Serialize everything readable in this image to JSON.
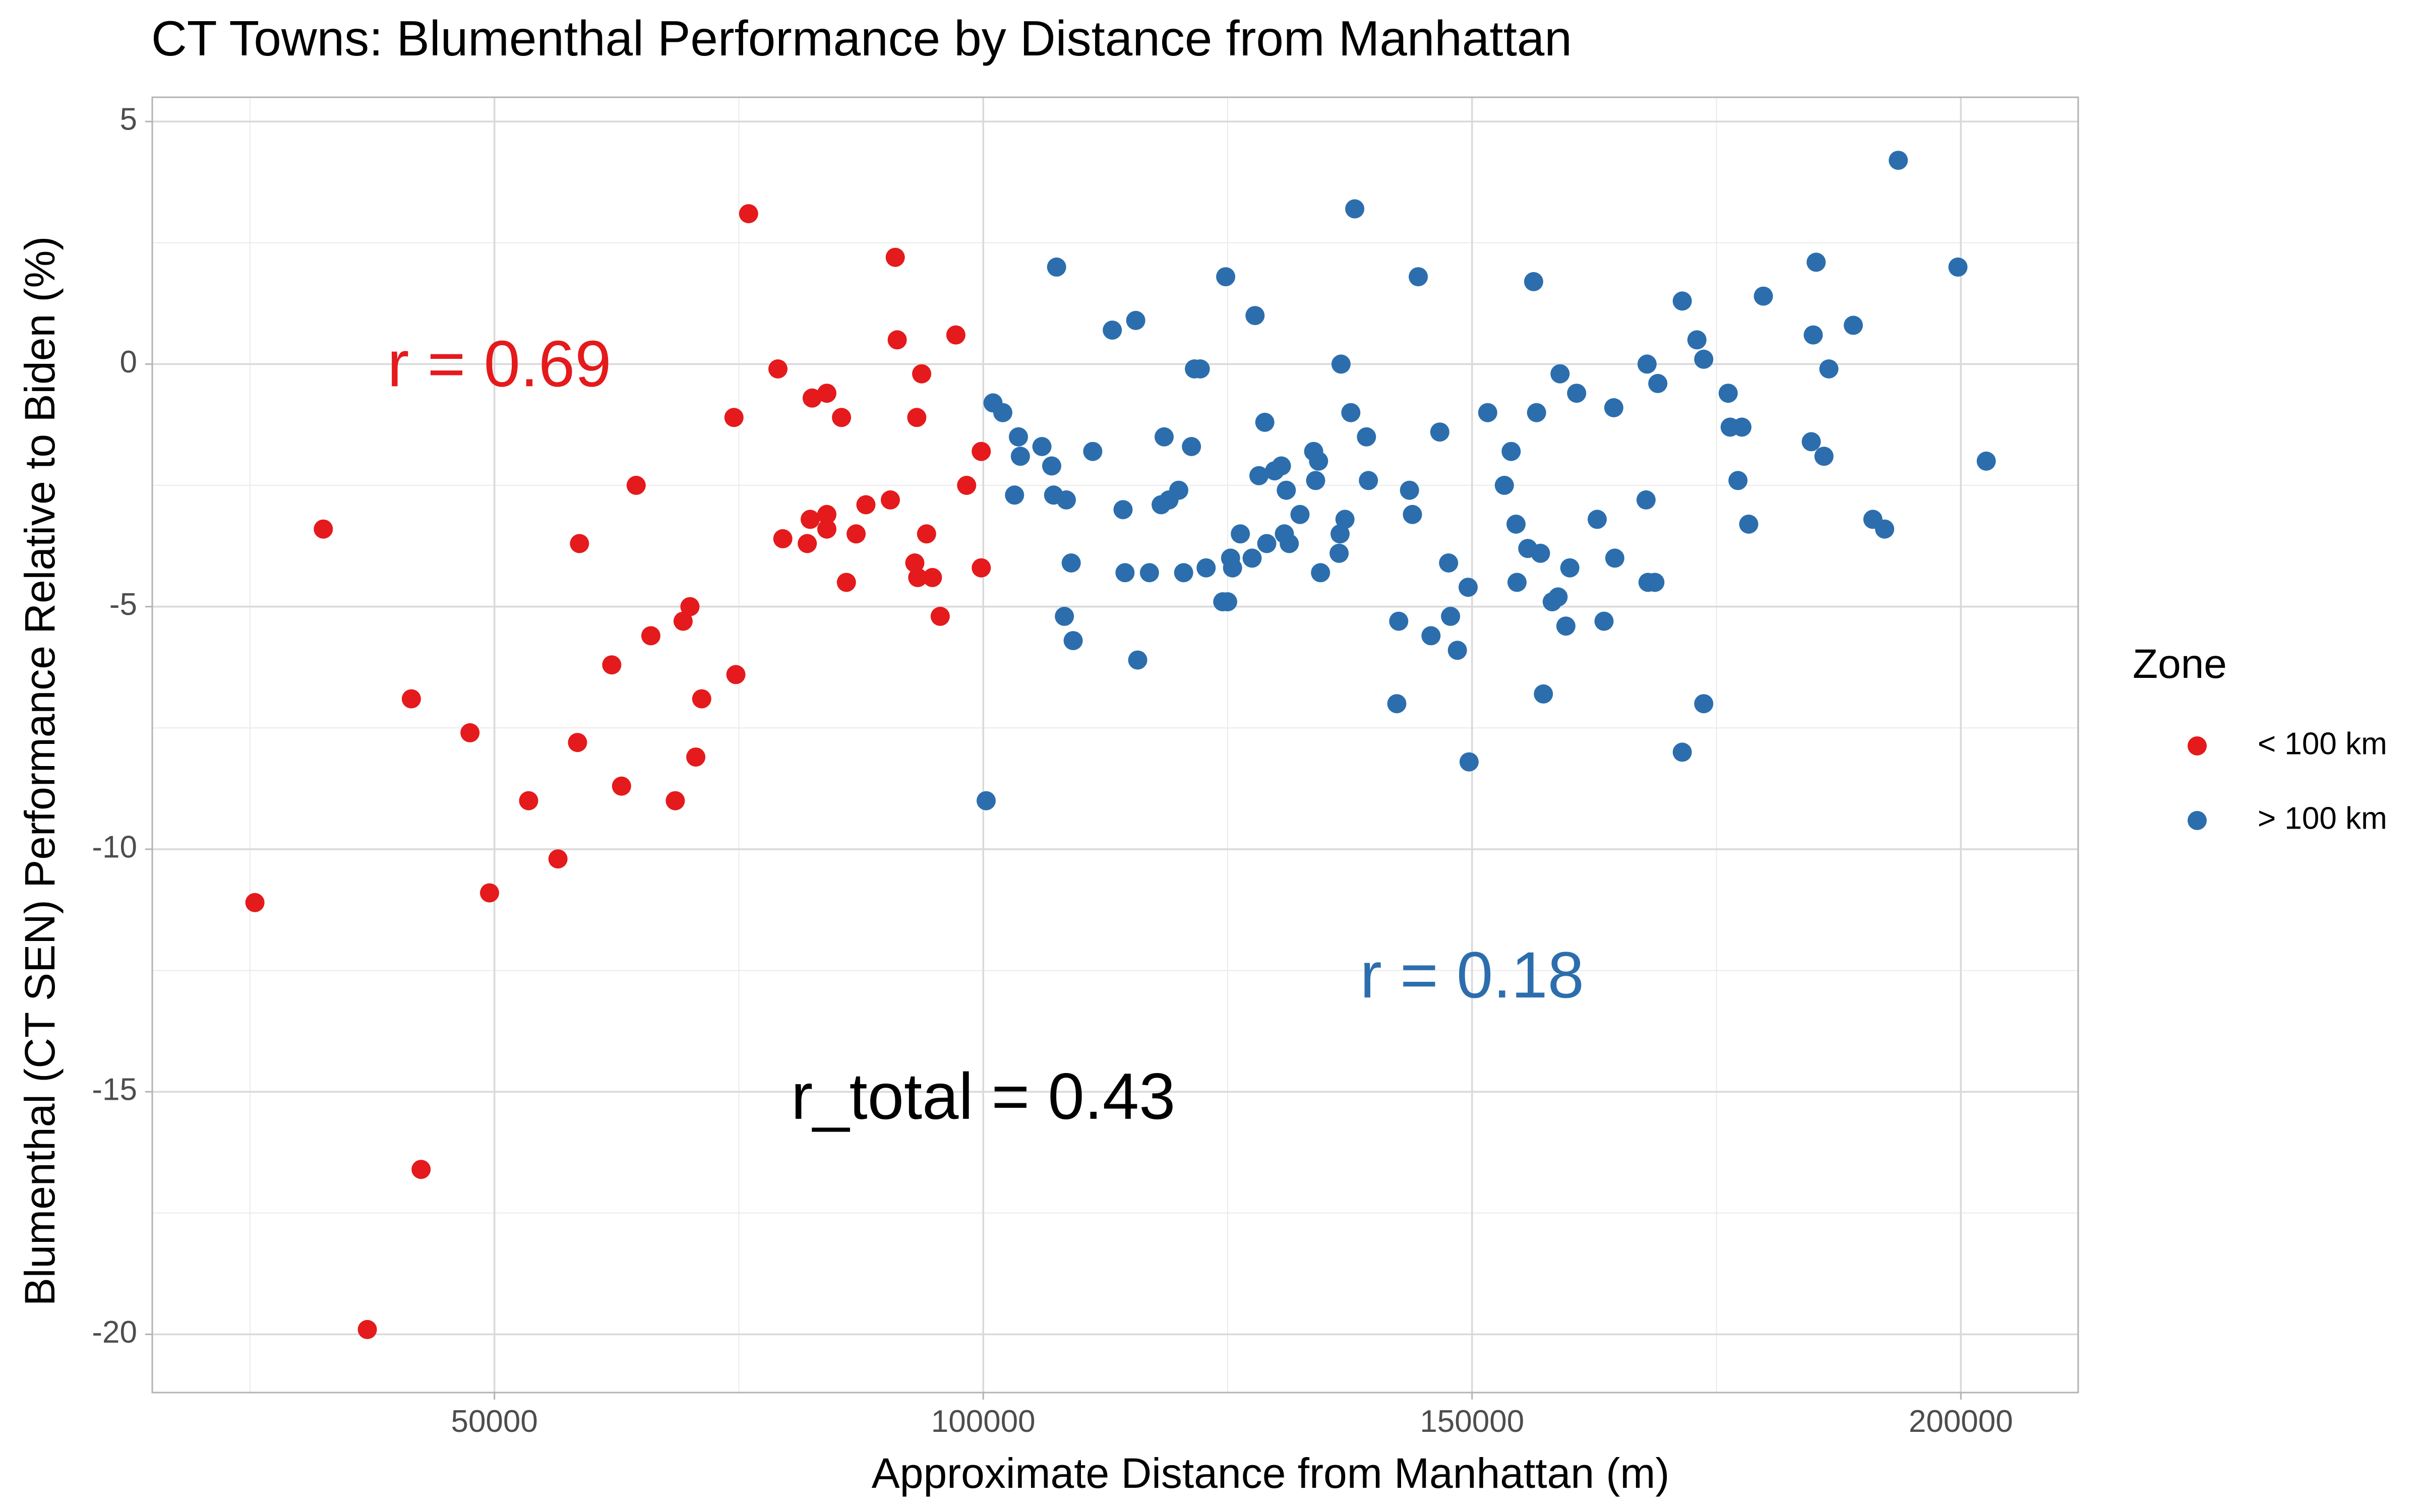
{
  "chart_data": {
    "type": "scatter",
    "title": "CT Towns: Blumenthal Performance by Distance from Manhattan",
    "xlabel": "Approximate Distance from Manhattan (m)",
    "ylabel": "Blumenthal (CT SEN) Performance Relative to Biden (%)",
    "xlim": [
      15000,
      212000
    ],
    "ylim": [
      -21.2,
      5.5
    ],
    "x_ticks": [
      50000,
      100000,
      150000,
      200000
    ],
    "x_tick_labels": [
      "50000",
      "100000",
      "150000",
      "200000"
    ],
    "y_ticks": [
      5,
      0,
      -5,
      -10,
      -15,
      -20
    ],
    "y_tick_labels": [
      "5",
      "0",
      "-5",
      "-10",
      "-15",
      "-20"
    ],
    "grid": true,
    "legend": {
      "title": "Zone",
      "position": "right"
    },
    "annotations": [
      {
        "text": "r = 0.69",
        "x": 50500,
        "y": -0.1,
        "color": "#e41a1c"
      },
      {
        "text": "r = 0.18",
        "x": 150000,
        "y": -12.7,
        "color": "#2c6ead"
      },
      {
        "text": "r_total = 0.43",
        "x": 100000,
        "y": -15.2,
        "color": "#000000"
      }
    ],
    "series": [
      {
        "name": "< 100 km",
        "color": "#e41a1c",
        "points": [
          [
            25500,
            -11.1
          ],
          [
            32500,
            -3.4
          ],
          [
            37000,
            -19.9
          ],
          [
            41500,
            -6.9
          ],
          [
            42500,
            -16.6
          ],
          [
            47500,
            -7.6
          ],
          [
            49500,
            -10.9
          ],
          [
            53500,
            -9.0
          ],
          [
            56500,
            -10.2
          ],
          [
            58500,
            -7.8
          ],
          [
            58700,
            -3.7
          ],
          [
            62000,
            -6.2
          ],
          [
            63000,
            -8.7
          ],
          [
            64500,
            -2.5
          ],
          [
            66000,
            -5.6
          ],
          [
            68500,
            -9.0
          ],
          [
            69300,
            -5.3
          ],
          [
            70000,
            -5.0
          ],
          [
            70600,
            -8.1
          ],
          [
            71200,
            -6.9
          ],
          [
            74500,
            -1.1
          ],
          [
            74700,
            -6.4
          ],
          [
            76000,
            3.1
          ],
          [
            79000,
            -0.1
          ],
          [
            79500,
            -3.6
          ],
          [
            82000,
            -3.7
          ],
          [
            82300,
            -3.2
          ],
          [
            82500,
            -0.7
          ],
          [
            84000,
            -0.6
          ],
          [
            84000,
            -3.1
          ],
          [
            84000,
            -3.4
          ],
          [
            85500,
            -1.1
          ],
          [
            86000,
            -4.5
          ],
          [
            87000,
            -3.5
          ],
          [
            88000,
            -2.9
          ],
          [
            90500,
            -2.8
          ],
          [
            91000,
            2.2
          ],
          [
            91200,
            0.5
          ],
          [
            93000,
            -4.1
          ],
          [
            93200,
            -1.1
          ],
          [
            93300,
            -4.4
          ],
          [
            93700,
            -0.2
          ],
          [
            94200,
            -3.5
          ],
          [
            94800,
            -4.4
          ],
          [
            95600,
            -5.2
          ],
          [
            97200,
            0.6
          ],
          [
            98300,
            -2.5
          ],
          [
            99800,
            -1.8
          ],
          [
            99800,
            -4.2
          ]
        ]
      },
      {
        "name": "> 100 km",
        "color": "#2c6ead",
        "points": [
          [
            100300,
            -9.0
          ],
          [
            101000,
            -0.8
          ],
          [
            102000,
            -1.0
          ],
          [
            103200,
            -2.7
          ],
          [
            103600,
            -1.5
          ],
          [
            103800,
            -1.9
          ],
          [
            106000,
            -1.7
          ],
          [
            107000,
            -2.1
          ],
          [
            107200,
            -2.7
          ],
          [
            107500,
            2.0
          ],
          [
            108300,
            -5.2
          ],
          [
            108500,
            -2.8
          ],
          [
            109000,
            -4.1
          ],
          [
            109200,
            -5.7
          ],
          [
            111200,
            -1.8
          ],
          [
            113200,
            0.7
          ],
          [
            114300,
            -3.0
          ],
          [
            114500,
            -4.3
          ],
          [
            115600,
            0.9
          ],
          [
            115800,
            -6.1
          ],
          [
            117000,
            -4.3
          ],
          [
            118200,
            -2.9
          ],
          [
            118500,
            -1.5
          ],
          [
            119000,
            -2.8
          ],
          [
            120000,
            -2.6
          ],
          [
            120500,
            -4.3
          ],
          [
            121300,
            -1.7
          ],
          [
            121600,
            -0.1
          ],
          [
            122200,
            -0.1
          ],
          [
            122800,
            -4.2
          ],
          [
            124500,
            -4.9
          ],
          [
            124800,
            1.8
          ],
          [
            125000,
            -4.9
          ],
          [
            125300,
            -4.0
          ],
          [
            125500,
            -4.2
          ],
          [
            126300,
            -3.5
          ],
          [
            127500,
            -4.0
          ],
          [
            127800,
            1.0
          ],
          [
            128200,
            -2.3
          ],
          [
            128800,
            -1.2
          ],
          [
            129000,
            -3.7
          ],
          [
            129800,
            -2.2
          ],
          [
            130500,
            -2.1
          ],
          [
            130800,
            -3.5
          ],
          [
            131000,
            -2.6
          ],
          [
            131300,
            -3.7
          ],
          [
            132400,
            -3.1
          ],
          [
            133800,
            -1.8
          ],
          [
            134000,
            -2.4
          ],
          [
            134300,
            -2.0
          ],
          [
            134500,
            -4.3
          ],
          [
            136400,
            -3.9
          ],
          [
            136500,
            -3.5
          ],
          [
            136600,
            0.0
          ],
          [
            137000,
            -3.2
          ],
          [
            137600,
            -1.0
          ],
          [
            138000,
            3.2
          ],
          [
            139200,
            -1.5
          ],
          [
            139400,
            -2.4
          ],
          [
            142300,
            -7.0
          ],
          [
            142500,
            -5.3
          ],
          [
            143600,
            -2.6
          ],
          [
            143900,
            -3.1
          ],
          [
            144500,
            1.8
          ],
          [
            145800,
            -5.6
          ],
          [
            146700,
            -1.4
          ],
          [
            147600,
            -4.1
          ],
          [
            147800,
            -5.2
          ],
          [
            148500,
            -5.9
          ],
          [
            149600,
            -4.6
          ],
          [
            149700,
            -8.2
          ],
          [
            151600,
            -1.0
          ],
          [
            153300,
            -2.5
          ],
          [
            154000,
            -1.8
          ],
          [
            154500,
            -3.3
          ],
          [
            154600,
            -4.5
          ],
          [
            155700,
            -3.8
          ],
          [
            156300,
            1.7
          ],
          [
            156600,
            -1.0
          ],
          [
            157000,
            -3.9
          ],
          [
            157300,
            -6.8
          ],
          [
            158200,
            -4.9
          ],
          [
            158800,
            -4.8
          ],
          [
            159000,
            -0.2
          ],
          [
            159600,
            -5.4
          ],
          [
            160000,
            -4.2
          ],
          [
            160700,
            -0.6
          ],
          [
            162800,
            -3.2
          ],
          [
            163500,
            -5.3
          ],
          [
            164500,
            -0.9
          ],
          [
            164600,
            -4.0
          ],
          [
            167800,
            -2.8
          ],
          [
            167900,
            0.0
          ],
          [
            168000,
            -4.5
          ],
          [
            168700,
            -4.5
          ],
          [
            169000,
            -0.4
          ],
          [
            171500,
            1.3
          ],
          [
            171500,
            -8.0
          ],
          [
            173000,
            0.5
          ],
          [
            173700,
            0.1
          ],
          [
            173700,
            -7.0
          ],
          [
            176200,
            -0.6
          ],
          [
            176400,
            -1.3
          ],
          [
            177200,
            -2.4
          ],
          [
            177600,
            -1.3
          ],
          [
            178300,
            -3.3
          ],
          [
            179800,
            1.4
          ],
          [
            184700,
            -1.6
          ],
          [
            184900,
            0.6
          ],
          [
            185200,
            2.1
          ],
          [
            186000,
            -1.9
          ],
          [
            186500,
            -0.1
          ],
          [
            189000,
            0.8
          ],
          [
            191000,
            -3.2
          ],
          [
            192200,
            -3.4
          ],
          [
            193600,
            4.2
          ],
          [
            199700,
            2.0
          ],
          [
            202600,
            -2.0
          ]
        ]
      }
    ]
  }
}
